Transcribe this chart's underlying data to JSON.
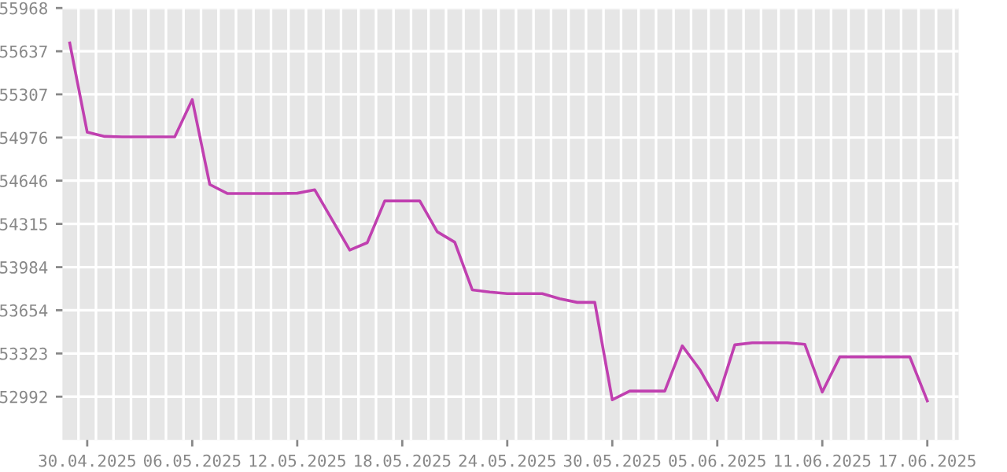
{
  "chart_data": {
    "type": "line",
    "x": [
      "2025-04-29",
      "2025-04-30",
      "2025-05-01",
      "2025-05-02",
      "2025-05-03",
      "2025-05-04",
      "2025-05-05",
      "2025-05-06",
      "2025-05-07",
      "2025-05-08",
      "2025-05-09",
      "2025-05-10",
      "2025-05-11",
      "2025-05-12",
      "2025-05-13",
      "2025-05-14",
      "2025-05-15",
      "2025-05-16",
      "2025-05-17",
      "2025-05-18",
      "2025-05-19",
      "2025-05-20",
      "2025-05-21",
      "2025-05-22",
      "2025-05-23",
      "2025-05-24",
      "2025-05-25",
      "2025-05-26",
      "2025-05-27",
      "2025-05-28",
      "2025-05-29",
      "2025-05-30",
      "2025-05-31",
      "2025-06-01",
      "2025-06-02",
      "2025-06-03",
      "2025-06-04",
      "2025-06-05",
      "2025-06-06",
      "2025-06-07",
      "2025-06-08",
      "2025-06-09",
      "2025-06-10",
      "2025-06-11",
      "2025-06-12",
      "2025-06-13",
      "2025-06-14",
      "2025-06-15",
      "2025-06-16",
      "2025-06-17"
    ],
    "series": [
      {
        "color": "#c040b0",
        "values": [
          55700,
          55017,
          54985,
          54981,
          54981,
          54981,
          54981,
          55266,
          54617,
          54548,
          54548,
          54548,
          54548,
          54550,
          54576,
          54345,
          54115,
          54171,
          54491,
          54491,
          54491,
          54255,
          54175,
          53810,
          53793,
          53781,
          53781,
          53781,
          53742,
          53714,
          53714,
          52968,
          53035,
          53035,
          53035,
          53381,
          53200,
          52963,
          53389,
          53405,
          53405,
          53405,
          53393,
          53028,
          53297,
          53297,
          53297,
          53297,
          53297,
          52960
        ]
      }
    ],
    "ylim": [
      52661,
      55968
    ],
    "yticks": [
      52992,
      53323,
      53654,
      53984,
      54315,
      54646,
      54976,
      55307,
      55637,
      55968
    ],
    "xlim": [
      "2025-04-28T14:00",
      "2025-06-18T19:00"
    ],
    "xticks": [
      {
        "value": "2025-04-30",
        "label": "30.04.2025"
      },
      {
        "value": "2025-05-06",
        "label": "06.05.2025"
      },
      {
        "value": "2025-05-12",
        "label": "12.05.2025"
      },
      {
        "value": "2025-05-18",
        "label": "18.05.2025"
      },
      {
        "value": "2025-05-24",
        "label": "24.05.2025"
      },
      {
        "value": "2025-05-30",
        "label": "30.05.2025"
      },
      {
        "value": "2025-06-05",
        "label": "05.06.2025"
      },
      {
        "value": "2025-06-11",
        "label": "11.06.2025"
      },
      {
        "value": "2025-06-17",
        "label": "17.06.2025"
      }
    ],
    "grid": true,
    "marker": "none",
    "line_style": "solid"
  }
}
